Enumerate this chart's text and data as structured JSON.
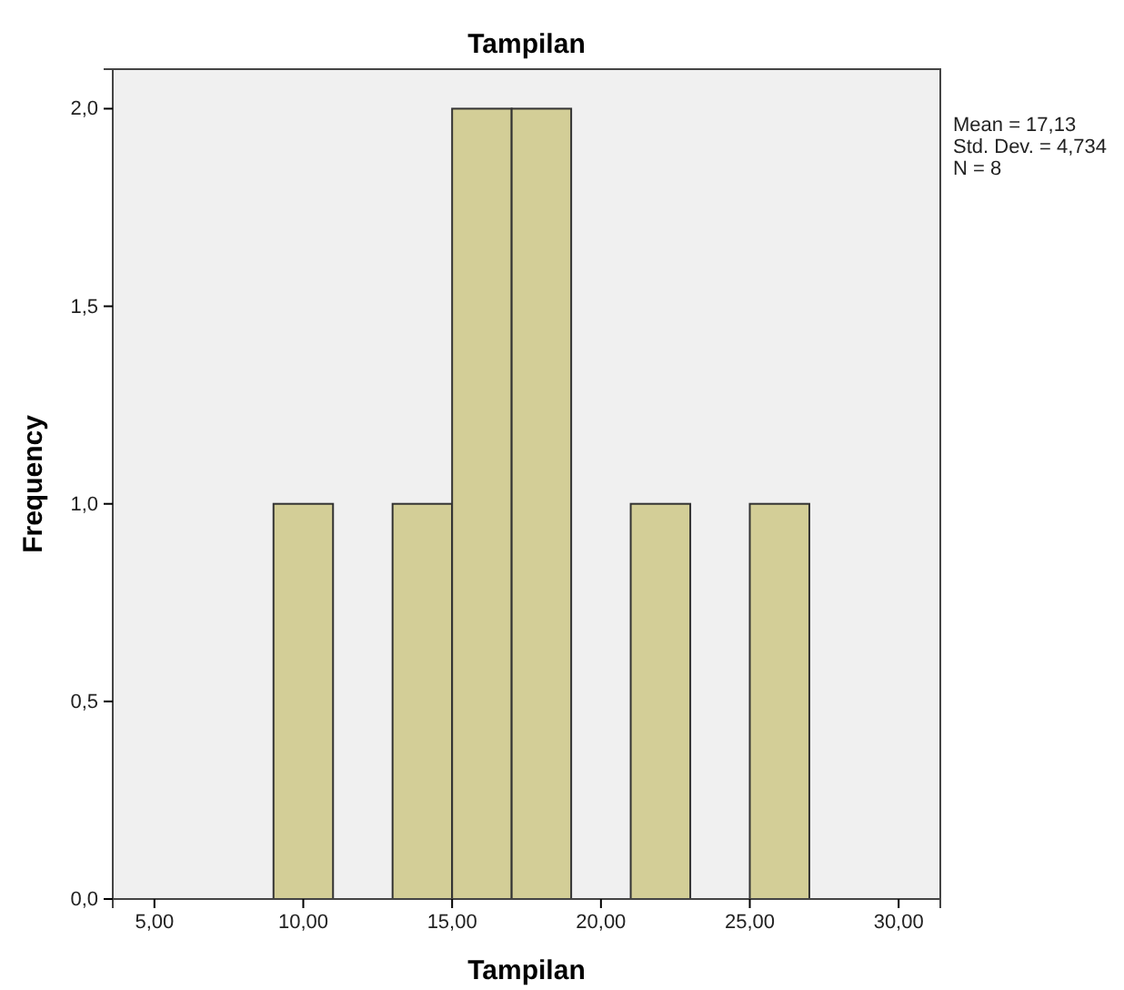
{
  "chart_data": {
    "type": "histogram",
    "title": "Tampilan",
    "xlabel": "Tampilan",
    "ylabel": "Frequency",
    "bins": [
      9,
      11,
      13,
      15,
      17,
      19,
      21,
      23,
      25,
      27
    ],
    "values": [
      1,
      0,
      1,
      2,
      2,
      0,
      1,
      0,
      1
    ],
    "color": "#d3ce97",
    "xlim": [
      3.6,
      31.4
    ],
    "ylim": [
      0,
      2.1
    ],
    "xticks": [
      {
        "value": 5,
        "label": "5,00"
      },
      {
        "value": 10,
        "label": "10,00"
      },
      {
        "value": 15,
        "label": "15,00"
      },
      {
        "value": 20,
        "label": "20,00"
      },
      {
        "value": 25,
        "label": "25,00"
      },
      {
        "value": 30,
        "label": "30,00"
      }
    ],
    "yticks": [
      {
        "value": 0,
        "label": "0,0"
      },
      {
        "value": 0.5,
        "label": "0,5"
      },
      {
        "value": 1,
        "label": "1,0"
      },
      {
        "value": 1.5,
        "label": "1,5"
      },
      {
        "value": 2,
        "label": "2,0"
      }
    ],
    "annotations": [
      "Mean = 17,13",
      "Std. Dev. = 4,734",
      "N = 8"
    ],
    "grid": false
  }
}
